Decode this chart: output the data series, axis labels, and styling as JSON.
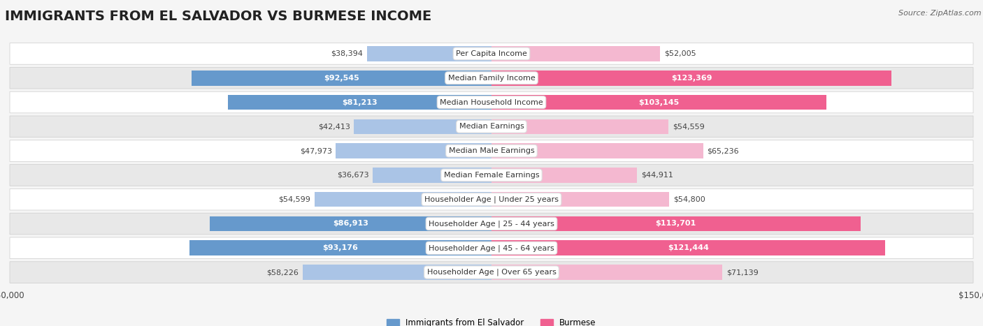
{
  "title": "IMMIGRANTS FROM EL SALVADOR VS BURMESE INCOME",
  "source": "Source: ZipAtlas.com",
  "categories": [
    "Per Capita Income",
    "Median Family Income",
    "Median Household Income",
    "Median Earnings",
    "Median Male Earnings",
    "Median Female Earnings",
    "Householder Age | Under 25 years",
    "Householder Age | 25 - 44 years",
    "Householder Age | 45 - 64 years",
    "Householder Age | Over 65 years"
  ],
  "salvador_values": [
    38394,
    92545,
    81213,
    42413,
    47973,
    36673,
    54599,
    86913,
    93176,
    58226
  ],
  "burmese_values": [
    52005,
    123369,
    103145,
    54559,
    65236,
    44911,
    54800,
    113701,
    121444,
    71139
  ],
  "salvador_labels": [
    "$38,394",
    "$92,545",
    "$81,213",
    "$42,413",
    "$47,973",
    "$36,673",
    "$54,599",
    "$86,913",
    "$93,176",
    "$58,226"
  ],
  "burmese_labels": [
    "$52,005",
    "$123,369",
    "$103,145",
    "$54,559",
    "$65,236",
    "$44,911",
    "$54,800",
    "$113,701",
    "$121,444",
    "$71,139"
  ],
  "salvador_color_light": "#aac4e6",
  "salvador_color_dark": "#6699cc",
  "burmese_color_light": "#f4b8d0",
  "burmese_color_dark": "#f06090",
  "max_value": 150000,
  "legend_salvador": "Immigrants from El Salvador",
  "legend_burmese": "Burmese",
  "background_color": "#f5f5f5",
  "row_bg_even": "#ffffff",
  "row_bg_odd": "#e8e8e8",
  "title_fontsize": 14,
  "label_fontsize": 8,
  "category_fontsize": 8,
  "inside_label_threshold": 55000,
  "salvador_inside": [
    false,
    true,
    true,
    false,
    false,
    false,
    false,
    true,
    true,
    false
  ],
  "burmese_inside": [
    false,
    true,
    true,
    false,
    false,
    false,
    false,
    true,
    true,
    false
  ]
}
